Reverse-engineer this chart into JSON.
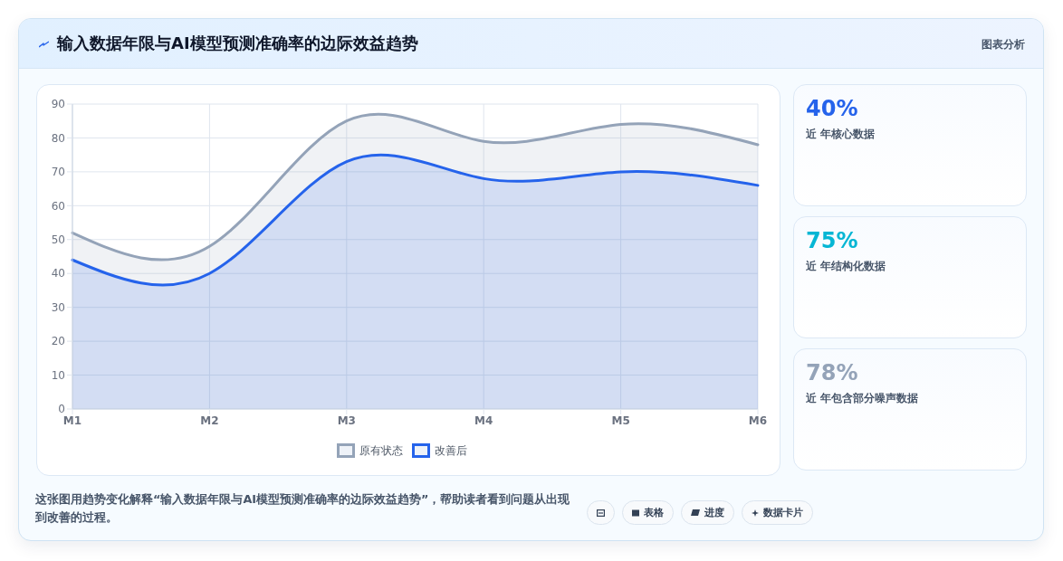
{
  "chart_data": [
    {
      "type": "area",
      "title": "输入数据年限与AI模型预测准确率的边际效益趋势",
      "categories": [
        "M1",
        "M2",
        "M3",
        "M4",
        "M5",
        "M6"
      ],
      "series": [
        {
          "name": "原有状态",
          "color": "#94a3b8",
          "values": [
            52,
            48,
            85,
            79,
            84,
            78
          ]
        },
        {
          "name": "改善后",
          "color": "#2563eb",
          "values": [
            44,
            40,
            73,
            68,
            70,
            66
          ]
        }
      ],
      "ylim": [
        0,
        90
      ],
      "yticks": [
        0,
        10,
        20,
        30,
        40,
        50,
        60,
        70,
        80,
        90
      ],
      "grid": true,
      "legend": "bottom",
      "marker": "none",
      "line_style": "solid",
      "annotations": [
        "图表分析",
        "这张图用趋势变化解释“输入数据年限与AI模型预测准确率的边际效益趋势”，帮助读者看到问题从出现到改善的过程。",
        "表格",
        "进度",
        "数据卡片"
      ]
    },
    {
      "type": "other",
      "annotations": [
        "40%",
        "近 年核心数据",
        "75%",
        "近 年结构化数据",
        "78%",
        "近 年包含部分噪声数据"
      ],
      "colors": [
        "#2563eb",
        "#06b6d4",
        "#94a3b8"
      ]
    }
  ]
}
